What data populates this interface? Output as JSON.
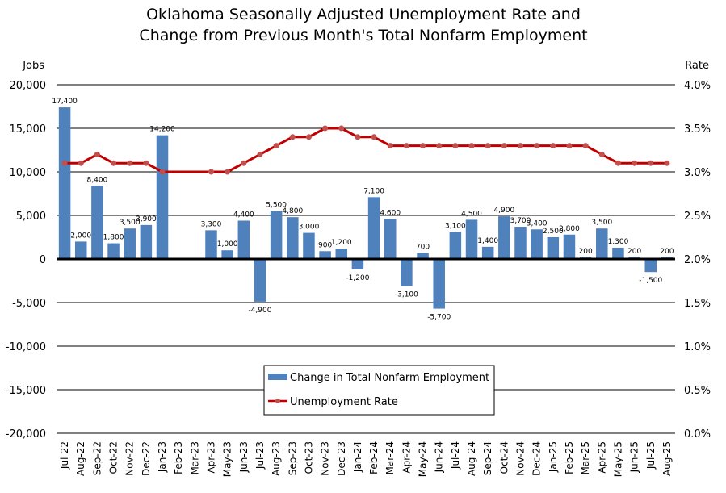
{
  "chart_data": {
    "type": "bar+line",
    "title_lines": [
      "Oklahoma Seasonally Adjusted Unemployment Rate and",
      "Change from Previous Month's Total Nonfarm Employment"
    ],
    "ylabel_left": "Jobs",
    "ylabel_right": "Rate",
    "ylim_left": [
      -20000,
      20000
    ],
    "ylim_right": [
      0.0,
      4.0
    ],
    "yticks_left": [
      "20,000",
      "15,000",
      "10,000",
      "5,000",
      "0",
      "-5,000",
      "-10,000",
      "-15,000",
      "-20,000"
    ],
    "yticks_right": [
      "4.0%",
      "3.5%",
      "3.0%",
      "2.5%",
      "2.0%",
      "1.5%",
      "1.0%",
      "0.5%",
      "0.0%"
    ],
    "grid": true,
    "legend_position": "bottom-center",
    "categories": [
      "Jul-22",
      "Aug-22",
      "Sep-22",
      "Oct-22",
      "Nov-22",
      "Dec-22",
      "Jan-23",
      "Feb-23",
      "Mar-23",
      "Apr-23",
      "May-23",
      "Jun-23",
      "Jul-23",
      "Aug-23",
      "Sep-23",
      "Oct-23",
      "Nov-23",
      "Dec-23",
      "Jan-24",
      "Feb-24",
      "Mar-24",
      "Apr-24",
      "May-24",
      "Jun-24",
      "Jul-24",
      "Aug-24",
      "Sep-24",
      "Oct-24",
      "Nov-24",
      "Dec-24",
      "Jan-25",
      "Feb-25",
      "Mar-25",
      "Apr-25",
      "May-25",
      "Jun-25",
      "Jul-25",
      "Aug-25"
    ],
    "series": [
      {
        "name": "Change in Total Nonfarm Employment",
        "kind": "bar",
        "axis": "left",
        "color": "#4f81bd",
        "values": [
          17400,
          2000,
          8400,
          1800,
          3500,
          3900,
          14200,
          null,
          null,
          3300,
          1000,
          4400,
          -4900,
          5500,
          4800,
          3000,
          900,
          1200,
          -1200,
          7100,
          4600,
          -3100,
          700,
          -5700,
          3100,
          4500,
          1400,
          4900,
          3700,
          3400,
          2500,
          2800,
          200,
          3500,
          1300,
          200,
          -1500,
          200
        ],
        "labels": [
          "17,400",
          "2,000",
          "8,400",
          "1,800",
          "3,500",
          "3,900",
          "14,200",
          "",
          "",
          "3,300",
          "1,000",
          "4,400",
          "-4,900",
          "5,500",
          "4,800",
          "3,000",
          "900",
          "1,200",
          "-1,200",
          "7,100",
          "4,600",
          "-3,100",
          "700",
          "-5,700",
          "3,100",
          "4,500",
          "1,400",
          "4,900",
          "3,700",
          "3,400",
          "2,500",
          "2,800",
          "200",
          "3,500",
          "1,300",
          "200",
          "-1,500",
          "200"
        ]
      },
      {
        "name": "Unemployment Rate",
        "kind": "line",
        "axis": "right",
        "color": "#c00000",
        "marker_color": "#c0504d",
        "values": [
          3.1,
          3.1,
          3.2,
          3.1,
          3.1,
          3.1,
          3.0,
          null,
          null,
          3.0,
          3.0,
          3.1,
          3.2,
          3.3,
          3.4,
          3.4,
          3.5,
          3.5,
          3.4,
          3.4,
          3.3,
          3.3,
          3.3,
          3.3,
          3.3,
          3.3,
          3.3,
          3.3,
          3.3,
          3.3,
          3.3,
          3.3,
          3.3,
          3.2,
          3.1,
          3.1,
          3.1,
          3.1
        ]
      }
    ]
  }
}
